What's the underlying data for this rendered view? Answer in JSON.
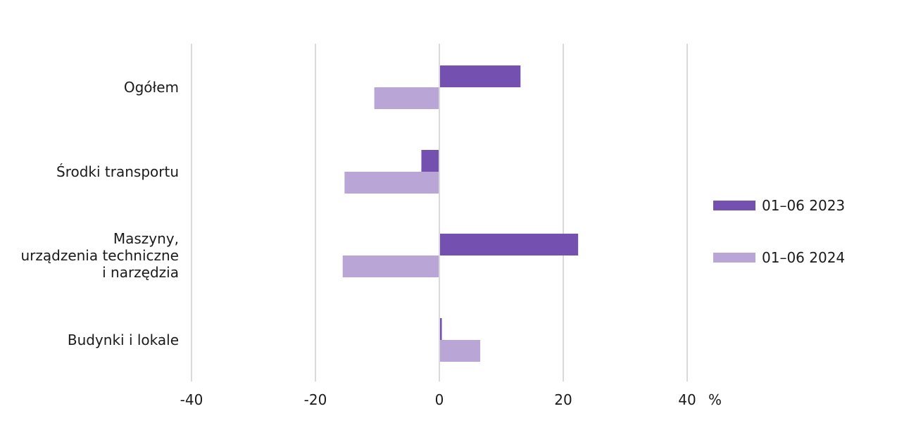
{
  "chart_data": {
    "type": "bar",
    "orientation": "horizontal",
    "categories": [
      [
        "Ogółem"
      ],
      [
        "Środki transportu"
      ],
      [
        "Maszyny,",
        "urządzenia techniczne",
        "i narzędzia"
      ],
      [
        "Budynki i lokale"
      ]
    ],
    "series": [
      {
        "name": "01–06 2023",
        "color": "#7451b0",
        "values": [
          13.1,
          -2.9,
          22.4,
          0.4
        ]
      },
      {
        "name": "01–06 2024",
        "color": "#baa6d6",
        "values": [
          -10.5,
          -15.3,
          -15.6,
          6.6
        ]
      }
    ],
    "xlim": [
      -40,
      40
    ],
    "xticks": [
      -40,
      -20,
      0,
      20,
      40
    ],
    "x_unit": "%",
    "grid": true,
    "legend_position": "right"
  }
}
